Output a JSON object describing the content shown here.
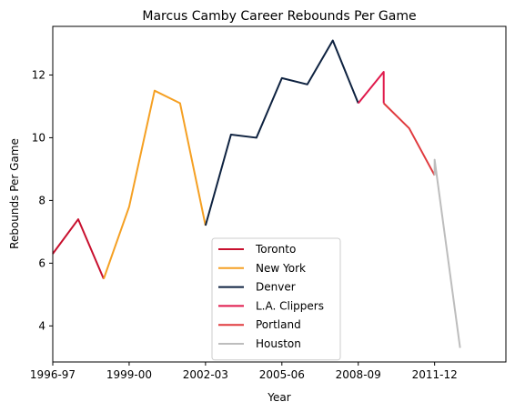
{
  "chart_data": {
    "type": "line",
    "title": "Marcus Camby Career Rebounds Per Game",
    "xlabel": "Year",
    "ylabel": "Rebounds Per Game",
    "x_ticks": [
      "1996-97",
      "1999-00",
      "2002-03",
      "2005-06",
      "2008-09",
      "2011-12"
    ],
    "y_ticks": [
      4,
      6,
      8,
      10,
      12
    ],
    "xlim": [
      0,
      17.8
    ],
    "ylim": [
      2.85,
      13.55
    ],
    "grid": false,
    "legend_position": "bottom-center",
    "series": [
      {
        "name": "Toronto",
        "color": "#C8102E",
        "x": [
          0,
          1,
          2
        ],
        "y": [
          6.3,
          7.4,
          5.5
        ]
      },
      {
        "name": "New York",
        "color": "#F5A023",
        "x": [
          2,
          3,
          4,
          5,
          6
        ],
        "y": [
          5.5,
          7.8,
          11.5,
          11.1,
          7.2
        ]
      },
      {
        "name": "Denver",
        "color": "#0E2240",
        "x": [
          6,
          7,
          8,
          9,
          10,
          11,
          12
        ],
        "y": [
          7.2,
          10.1,
          10.0,
          11.9,
          11.7,
          13.1,
          11.1
        ]
      },
      {
        "name": "L.A. Clippers",
        "color": "#E0194B",
        "x": [
          12,
          13,
          13
        ],
        "y": [
          11.1,
          12.1,
          11.1
        ]
      },
      {
        "name": "Portland",
        "color": "#E03A3E",
        "x": [
          13,
          14,
          15
        ],
        "y": [
          11.1,
          10.3,
          8.8
        ]
      },
      {
        "name": "Houston",
        "color": "#BDBDBD",
        "x": [
          15,
          15,
          16
        ],
        "y": [
          8.8,
          9.3,
          3.3
        ]
      }
    ]
  }
}
